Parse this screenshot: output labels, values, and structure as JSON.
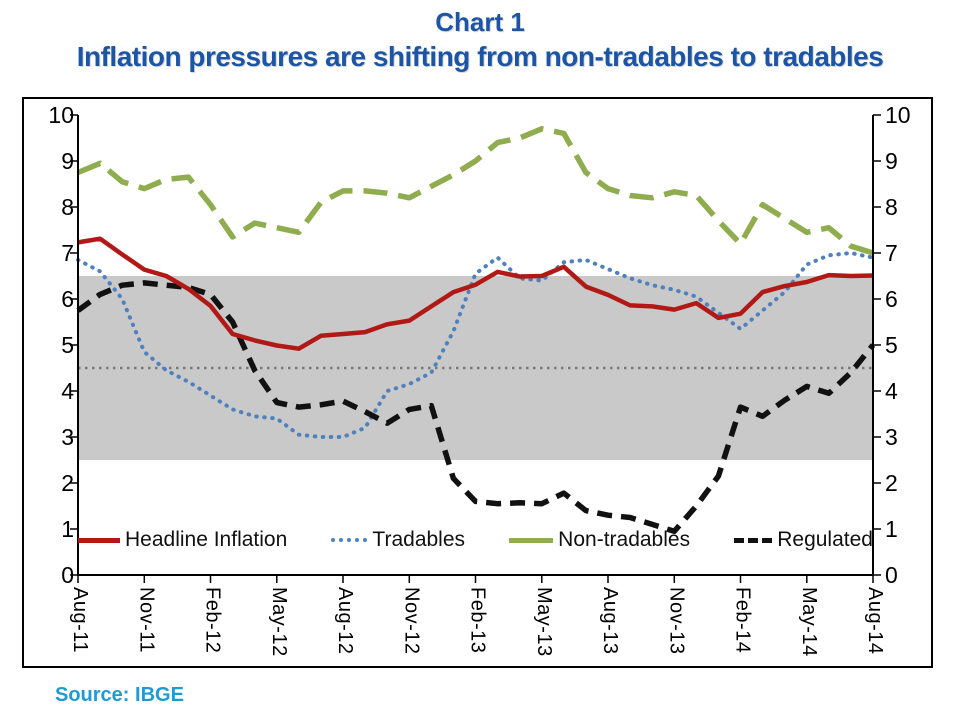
{
  "title": {
    "line1": "Chart 1",
    "line2": "Inflation pressures are shifting from non-tradables to tradables"
  },
  "source_note": "Source: IBGE",
  "colors": {
    "title": "#1C55A5",
    "source": "#1E9BD7",
    "headline": "#B01915",
    "tradables": "#4F81BD",
    "non_tradables": "#8FAC4E",
    "regulated": "#111111",
    "band": "#C9C9C9",
    "target": "#7A7A7A",
    "axis": "#000000"
  },
  "axis": {
    "y_min": 0,
    "y_max": 10,
    "y_ticks": [
      "0",
      "1",
      "2",
      "3",
      "4",
      "5",
      "6",
      "7",
      "8",
      "9",
      "10"
    ],
    "x_tick_labels": [
      "Aug-11",
      "Nov-11",
      "Feb-12",
      "May-12",
      "Aug-12",
      "Nov-12",
      "Feb-13",
      "May-13",
      "Aug-13",
      "Nov-13",
      "Feb-14",
      "May-14",
      "Aug-14"
    ]
  },
  "legend": [
    {
      "id": "headline",
      "label": "Headline Inflation"
    },
    {
      "id": "tradables",
      "label": "Tradables"
    },
    {
      "id": "non_tradables",
      "label": "Non-tradables"
    },
    {
      "id": "regulated",
      "label": "Regulated"
    }
  ],
  "chart_data": {
    "type": "line",
    "title": "Chart 1 — Inflation pressures are shifting from non-tradables to tradables",
    "ylim": [
      0,
      10
    ],
    "grid": false,
    "legend_position": "bottom-inside",
    "band": {
      "low": 2.5,
      "high": 6.5
    },
    "target_line": 4.5,
    "x": [
      "Aug-11",
      "Sep-11",
      "Oct-11",
      "Nov-11",
      "Dec-11",
      "Jan-12",
      "Feb-12",
      "Mar-12",
      "Apr-12",
      "May-12",
      "Jun-12",
      "Jul-12",
      "Aug-12",
      "Sep-12",
      "Oct-12",
      "Nov-12",
      "Dec-12",
      "Jan-13",
      "Feb-13",
      "Mar-13",
      "Apr-13",
      "May-13",
      "Jun-13",
      "Jul-13",
      "Aug-13",
      "Sep-13",
      "Oct-13",
      "Nov-13",
      "Dec-13",
      "Jan-14",
      "Feb-14",
      "Mar-14",
      "Apr-14",
      "May-14",
      "Jun-14",
      "Jul-14",
      "Aug-14"
    ],
    "series": [
      {
        "id": "headline",
        "name": "Headline Inflation",
        "values": [
          7.23,
          7.31,
          6.97,
          6.64,
          6.5,
          6.22,
          5.85,
          5.24,
          5.1,
          4.99,
          4.92,
          5.2,
          5.24,
          5.28,
          5.45,
          5.53,
          5.84,
          6.15,
          6.31,
          6.59,
          6.49,
          6.5,
          6.7,
          6.27,
          6.09,
          5.86,
          5.84,
          5.77,
          5.91,
          5.59,
          5.68,
          6.15,
          6.28,
          6.37,
          6.52,
          6.5,
          6.51
        ]
      },
      {
        "id": "tradables",
        "name": "Tradables",
        "values": [
          6.85,
          6.6,
          6.0,
          4.85,
          4.45,
          4.2,
          3.9,
          3.6,
          3.45,
          3.4,
          3.05,
          3.0,
          3.0,
          3.2,
          4.0,
          4.15,
          4.4,
          5.3,
          6.55,
          6.9,
          6.45,
          6.4,
          6.8,
          6.85,
          6.65,
          6.45,
          6.3,
          6.2,
          6.05,
          5.7,
          5.35,
          5.75,
          6.15,
          6.75,
          6.95,
          7.0,
          6.9
        ]
      },
      {
        "id": "non_tradables",
        "name": "Non-tradables",
        "values": [
          8.75,
          8.95,
          8.55,
          8.4,
          8.6,
          8.65,
          8.05,
          7.35,
          7.65,
          7.55,
          7.45,
          8.1,
          8.35,
          8.35,
          8.3,
          8.2,
          8.45,
          8.7,
          9.0,
          9.4,
          9.5,
          9.7,
          9.6,
          8.75,
          8.4,
          8.25,
          8.2,
          8.33,
          8.25,
          7.7,
          7.2,
          8.05,
          7.75,
          7.45,
          7.55,
          7.15,
          7.0
        ]
      },
      {
        "id": "regulated",
        "name": "Regulated",
        "values": [
          5.75,
          6.1,
          6.3,
          6.35,
          6.3,
          6.25,
          6.1,
          5.5,
          4.45,
          3.75,
          3.65,
          3.7,
          3.78,
          3.55,
          3.3,
          3.6,
          3.68,
          2.1,
          1.6,
          1.55,
          1.57,
          1.55,
          1.78,
          1.4,
          1.3,
          1.25,
          1.1,
          0.95,
          1.5,
          2.15,
          3.65,
          3.45,
          3.8,
          4.1,
          3.95,
          4.4,
          5.0
        ]
      }
    ]
  }
}
